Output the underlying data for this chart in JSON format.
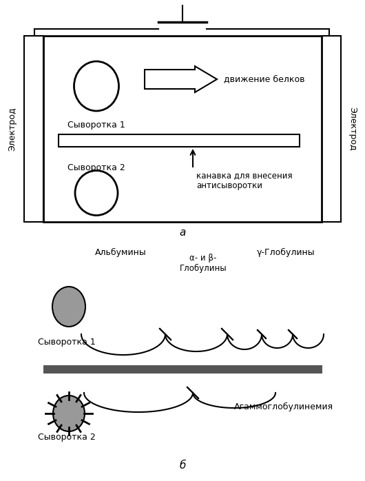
{
  "bg_color": "#ffffff",
  "panel_a": {
    "label_syv1": "Сыворотка 1",
    "label_syv2": "Сыворотка 2",
    "label_dvizh": "движение белков",
    "label_kanavka": "канавка для внесения\nантисыворотки",
    "label_electrod": "Электрод",
    "label_a": "а"
  },
  "panel_b": {
    "label_b": "б",
    "label_albuminy": "Альбумины",
    "label_alpha_beta": "α- и β-\nГлобулины",
    "label_gamma": "γ-Глобулины",
    "label_syv1": "Сыворотка 1",
    "label_syv2": "Сыворотка 2",
    "label_agamm": "Агаммоглобулинемия"
  }
}
